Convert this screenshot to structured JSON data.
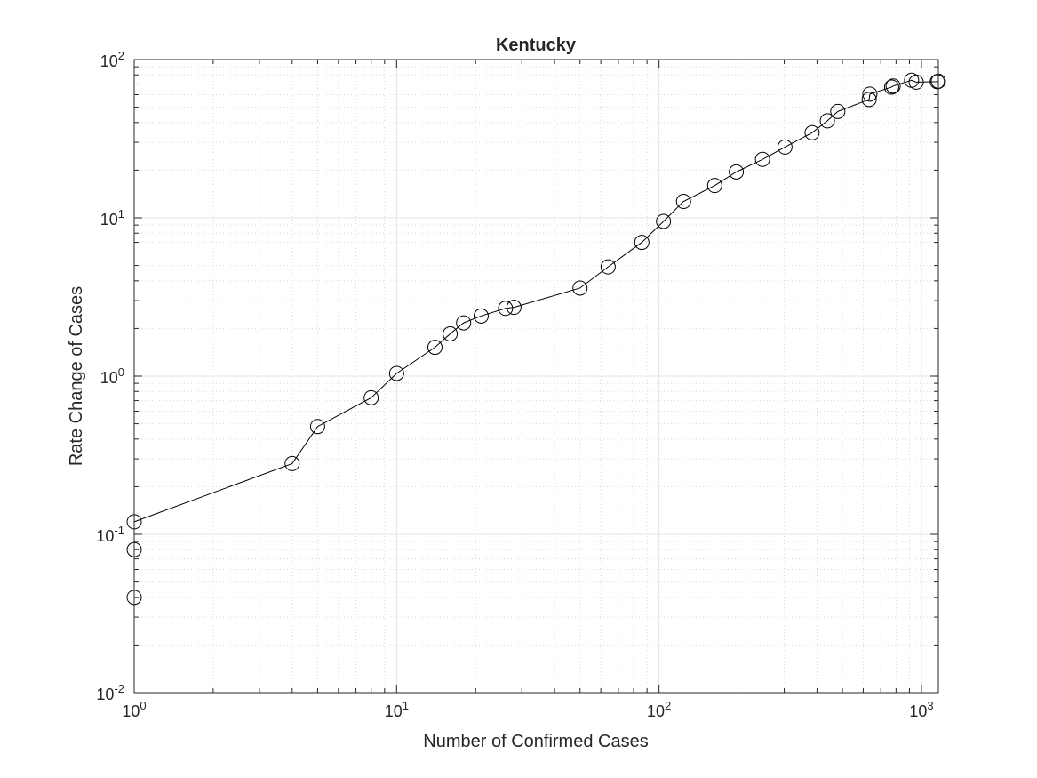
{
  "chart_data": {
    "type": "scatter",
    "title": "Kentucky",
    "xlabel": "Number of Confirmed Cases",
    "ylabel": "Rate Change of Cases",
    "xscale": "log",
    "yscale": "log",
    "xlim": [
      1,
      1160
    ],
    "ylim": [
      0.01,
      100
    ],
    "grid": true,
    "minor_grid": true,
    "x_ticks": [
      {
        "value": 1,
        "base": "10",
        "exp": "0"
      },
      {
        "value": 10,
        "base": "10",
        "exp": "1"
      },
      {
        "value": 100,
        "base": "10",
        "exp": "2"
      },
      {
        "value": 1000,
        "base": "10",
        "exp": "3"
      }
    ],
    "y_ticks": [
      {
        "value": 0.01,
        "base": "10",
        "exp": "-2"
      },
      {
        "value": 0.1,
        "base": "10",
        "exp": "-1"
      },
      {
        "value": 1,
        "base": "10",
        "exp": "0"
      },
      {
        "value": 10,
        "base": "10",
        "exp": "1"
      },
      {
        "value": 100,
        "base": "10",
        "exp": "2"
      }
    ],
    "marker": "open-circle",
    "line_color": "#000000",
    "series": [
      {
        "x": [
          1,
          1,
          1,
          4,
          5,
          8,
          10,
          14,
          16,
          18,
          21,
          26,
          28,
          50,
          64,
          86,
          104,
          124,
          163,
          197,
          248,
          302,
          383,
          438,
          480,
          632,
          636,
          770,
          780,
          917,
          955,
          1149,
          1160
        ],
        "y": [
          0.04,
          0.08,
          0.12,
          0.28,
          0.48,
          0.73,
          1.04,
          1.52,
          1.85,
          2.17,
          2.4,
          2.68,
          2.72,
          3.6,
          4.9,
          7.0,
          9.5,
          12.7,
          16.0,
          19.5,
          23.4,
          28.0,
          34.5,
          41.0,
          47.0,
          56.0,
          60.5,
          67.0,
          68.0,
          74.0,
          72.0,
          72.5,
          73.0
        ]
      }
    ]
  }
}
